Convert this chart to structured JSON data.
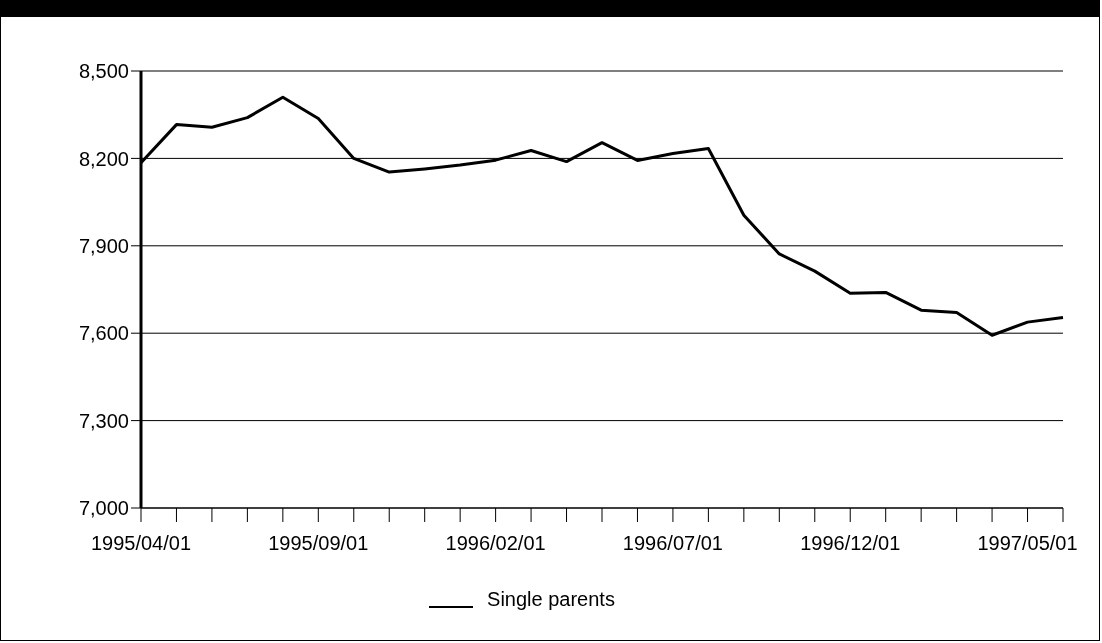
{
  "chart_data": {
    "type": "line",
    "categories": [
      "1995/04/01",
      null,
      null,
      null,
      null,
      "1995/09/01",
      null,
      null,
      null,
      null,
      "1996/02/01",
      null,
      null,
      null,
      null,
      "1996/07/01",
      null,
      null,
      null,
      null,
      "1996/12/01",
      null,
      null,
      null,
      null,
      "1997/05/01",
      null
    ],
    "series": [
      {
        "name": "Single parents",
        "color": "#000000",
        "values": [
          8185,
          8316,
          8307,
          8340,
          8410,
          8337,
          8200,
          8153,
          8164,
          8177,
          8194,
          8227,
          8189,
          8254,
          8193,
          8217,
          8234,
          8005,
          7872,
          7813,
          7737,
          7740,
          7679,
          7671,
          7593,
          7638,
          7654
        ]
      }
    ],
    "ylim": [
      7000,
      8500
    ],
    "yticks": [
      {
        "value": 7000,
        "label": "7,000"
      },
      {
        "value": 7300,
        "label": "7,300"
      },
      {
        "value": 7600,
        "label": "7,600"
      },
      {
        "value": 7900,
        "label": "7,900"
      },
      {
        "value": 8200,
        "label": "8,200"
      },
      {
        "value": 8500,
        "label": "8,500"
      }
    ],
    "grid": "y",
    "legend": "bottom",
    "marker": "none",
    "line_style": "solid"
  }
}
